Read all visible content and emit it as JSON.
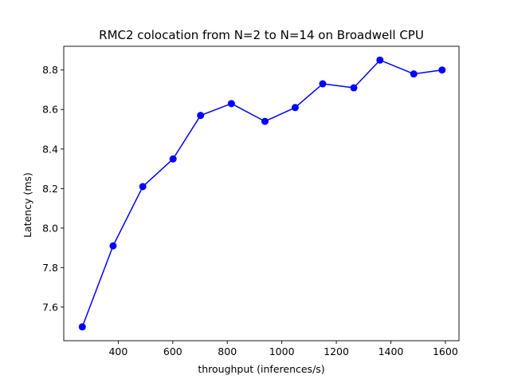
{
  "chart_data": {
    "type": "line",
    "title": "RMC2 colocation from N=2 to N=14 on Broadwell CPU",
    "xlabel": "throughput (inferences/s)",
    "ylabel": "Latency (ms)",
    "xlim": [
      200,
      1650
    ],
    "ylim": [
      7.43,
      8.92
    ],
    "xticks": [
      400,
      600,
      800,
      1000,
      1200,
      1400,
      1600
    ],
    "yticks": [
      7.6,
      7.8,
      8.0,
      8.2,
      8.4,
      8.6,
      8.8
    ],
    "ytick_labels": [
      "7.6",
      "7.8",
      "8.0",
      "8.2",
      "8.4",
      "8.6",
      "8.8"
    ],
    "grid": false,
    "series": [
      {
        "color": "#0000ff",
        "marker": "circle",
        "x": [
          268,
          381,
          490,
          601,
          702,
          815,
          938,
          1049,
          1150,
          1264,
          1360,
          1484,
          1588
        ],
        "y": [
          7.5,
          7.91,
          8.21,
          8.35,
          8.57,
          8.63,
          8.54,
          8.61,
          8.73,
          8.71,
          8.85,
          8.78,
          8.8
        ]
      }
    ]
  }
}
